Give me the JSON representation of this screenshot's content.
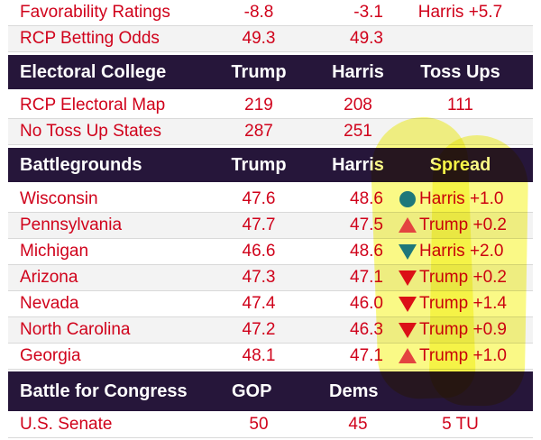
{
  "top_rows": [
    {
      "name": "Favorability Ratings",
      "trump": "-8.8",
      "harris": "-3.1",
      "spread": "Harris +5.7"
    },
    {
      "name": "RCP Betting Odds",
      "trump": "49.3",
      "harris": "49.3",
      "spread": ""
    }
  ],
  "electoral_header": {
    "title": "Electoral College",
    "col_a": "Trump",
    "col_b": "Harris",
    "col_c": "Toss Ups"
  },
  "electoral_rows": [
    {
      "name": "RCP Electoral Map",
      "trump": "219",
      "harris": "208",
      "toss": "111"
    },
    {
      "name": "No Toss Up States",
      "trump": "287",
      "harris": "251",
      "toss": ""
    }
  ],
  "battle_header": {
    "title": "Battlegrounds",
    "col_a": "Trump",
    "col_b": "Harris",
    "col_c": "Spread"
  },
  "battle_rows": [
    {
      "name": "Wisconsin",
      "trump": "47.6",
      "harris": "48.6",
      "icon": "circle-icon",
      "spread": "Harris +1.0"
    },
    {
      "name": "Pennsylvania",
      "trump": "47.7",
      "harris": "47.5",
      "icon": "triangle-up-icon",
      "spread": "Trump +0.2"
    },
    {
      "name": "Michigan",
      "trump": "46.6",
      "harris": "48.6",
      "icon": "triangle-down-blue-icon",
      "spread": "Harris +2.0"
    },
    {
      "name": "Arizona",
      "trump": "47.3",
      "harris": "47.1",
      "icon": "triangle-down-red-icon",
      "spread": "Trump +0.2"
    },
    {
      "name": "Nevada",
      "trump": "47.4",
      "harris": "46.0",
      "icon": "triangle-down-red-icon",
      "spread": "Trump +1.4"
    },
    {
      "name": "North Carolina",
      "trump": "47.2",
      "harris": "46.3",
      "icon": "triangle-down-red-icon",
      "spread": "Trump +0.9"
    },
    {
      "name": "Georgia",
      "trump": "48.1",
      "harris": "47.1",
      "icon": "triangle-up-icon",
      "spread": "Trump +1.0"
    }
  ],
  "congress_header": {
    "title": "Battle for Congress",
    "col_a": "GOP",
    "col_b": "Dems"
  },
  "congress_partial_row": {
    "name": "U.S. Senate",
    "gop": "50",
    "dems": "45",
    "spread": "5 TU"
  },
  "colors": {
    "header_bg": "#26163a",
    "text_red": "#d0021b",
    "harris_blue": "#1e7be8",
    "trump_red": "#e0102a",
    "trump_pink": "#e8457a",
    "highlight": "#f7f53c"
  }
}
